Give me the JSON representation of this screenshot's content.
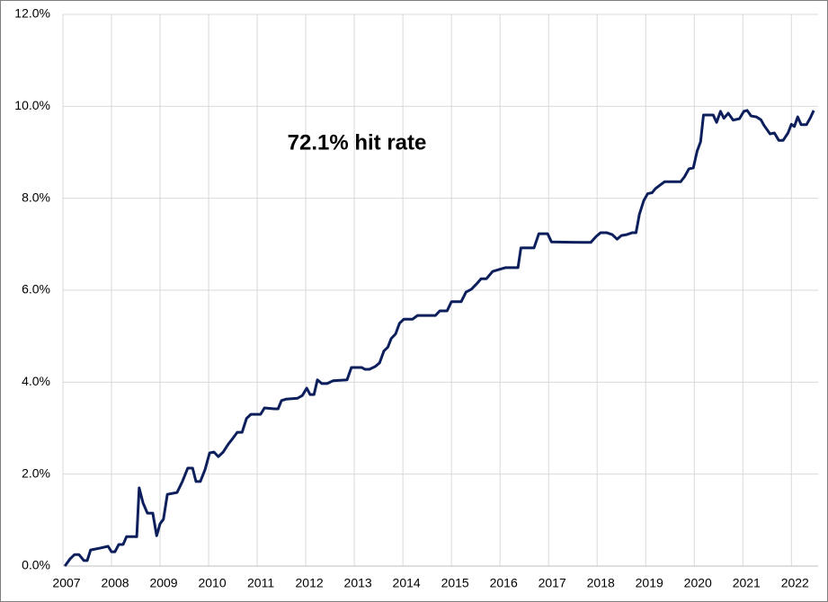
{
  "chart_data": {
    "type": "line",
    "annotation": "72.1% hit rate",
    "x": [
      2007.04,
      2007.15,
      2007.24,
      2007.33,
      2007.43,
      2007.5,
      2007.57,
      2007.76,
      2007.93,
      2008.0,
      2008.07,
      2008.15,
      2008.24,
      2008.31,
      2008.52,
      2008.57,
      2008.65,
      2008.74,
      2008.85,
      2008.93,
      2009.0,
      2009.07,
      2009.15,
      2009.35,
      2009.46,
      2009.57,
      2009.67,
      2009.74,
      2009.83,
      2009.93,
      2010.02,
      2010.11,
      2010.2,
      2010.3,
      2010.41,
      2010.5,
      2010.59,
      2010.69,
      2010.78,
      2010.87,
      2011.07,
      2011.15,
      2011.35,
      2011.43,
      2011.5,
      2011.59,
      2011.83,
      2011.93,
      2012.02,
      2012.09,
      2012.17,
      2012.24,
      2012.33,
      2012.44,
      2012.56,
      2012.85,
      2012.94,
      2013.15,
      2013.22,
      2013.31,
      2013.43,
      2013.52,
      2013.61,
      2013.69,
      2013.76,
      2013.85,
      2013.93,
      2014.02,
      2014.2,
      2014.3,
      2014.67,
      2014.76,
      2014.91,
      2015.0,
      2015.2,
      2015.3,
      2015.41,
      2015.52,
      2015.61,
      2015.72,
      2015.85,
      2015.98,
      2016.11,
      2016.37,
      2016.43,
      2016.7,
      2016.8,
      2016.98,
      2017.06,
      2017.7,
      2017.87,
      2017.98,
      2018.07,
      2018.2,
      2018.31,
      2018.41,
      2018.5,
      2018.61,
      2018.72,
      2018.8,
      2018.87,
      2018.96,
      2019.04,
      2019.13,
      2019.2,
      2019.3,
      2019.39,
      2019.72,
      2019.8,
      2019.89,
      2019.98,
      2020.06,
      2020.13,
      2020.19,
      2020.39,
      2020.46,
      2020.54,
      2020.61,
      2020.7,
      2020.8,
      2020.93,
      2021.02,
      2021.09,
      2021.17,
      2021.28,
      2021.37,
      2021.44,
      2021.56,
      2021.65,
      2021.74,
      2021.83,
      2021.93,
      2022.0,
      2022.06,
      2022.13,
      2022.2,
      2022.31,
      2022.39,
      2022.46
    ],
    "values": [
      0,
      0.16,
      0.25,
      0.25,
      0.12,
      0.12,
      0.35,
      0.39,
      0.43,
      0.31,
      0.31,
      0.47,
      0.47,
      0.64,
      0.64,
      1.7,
      1.37,
      1.15,
      1.15,
      0.66,
      0.92,
      1.02,
      1.56,
      1.6,
      1.84,
      2.13,
      2.13,
      1.84,
      1.84,
      2.11,
      2.46,
      2.48,
      2.38,
      2.48,
      2.66,
      2.78,
      2.91,
      2.91,
      3.21,
      3.3,
      3.3,
      3.44,
      3.42,
      3.42,
      3.6,
      3.63,
      3.65,
      3.71,
      3.87,
      3.73,
      3.73,
      4.05,
      3.97,
      3.97,
      4.03,
      4.05,
      4.32,
      4.32,
      4.28,
      4.28,
      4.34,
      4.42,
      4.68,
      4.76,
      4.95,
      5.05,
      5.28,
      5.37,
      5.37,
      5.45,
      5.45,
      5.55,
      5.55,
      5.75,
      5.75,
      5.96,
      6.02,
      6.14,
      6.25,
      6.25,
      6.41,
      6.45,
      6.49,
      6.49,
      6.92,
      6.92,
      7.23,
      7.23,
      7.05,
      7.04,
      7.04,
      7.17,
      7.25,
      7.25,
      7.21,
      7.11,
      7.19,
      7.21,
      7.25,
      7.25,
      7.65,
      7.95,
      8.1,
      8.12,
      8.21,
      8.29,
      8.36,
      8.36,
      8.47,
      8.64,
      8.66,
      9.03,
      9.23,
      9.81,
      9.81,
      9.65,
      9.89,
      9.74,
      9.85,
      9.7,
      9.73,
      9.89,
      9.91,
      9.79,
      9.77,
      9.71,
      9.58,
      9.4,
      9.42,
      9.26,
      9.26,
      9.42,
      9.61,
      9.56,
      9.77,
      9.6,
      9.6,
      9.75,
      9.91
    ],
    "color": "#0c1f5c",
    "xlim": [
      2007,
      2022.55
    ],
    "xticks": [
      2007,
      2008,
      2009,
      2010,
      2011,
      2012,
      2013,
      2014,
      2015,
      2016,
      2017,
      2018,
      2019,
      2020,
      2021,
      2022
    ],
    "ylim": [
      0,
      12
    ],
    "yticks": [
      {
        "value": 0,
        "label": "0.0%"
      },
      {
        "value": 2,
        "label": "2.0%"
      },
      {
        "value": 4,
        "label": "4.0%"
      },
      {
        "value": 6,
        "label": "6.0%"
      },
      {
        "value": 8,
        "label": "8.0%"
      },
      {
        "value": 10,
        "label": "10.0%"
      },
      {
        "value": 12,
        "label": "12.0%"
      }
    ],
    "grid": true
  }
}
